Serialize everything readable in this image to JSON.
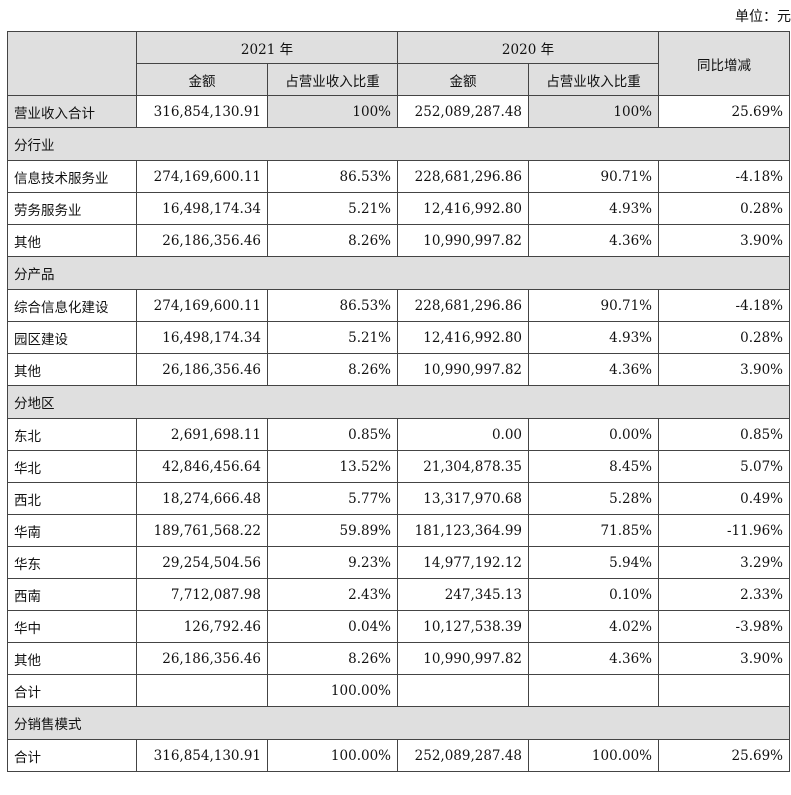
{
  "unit_label": "单位：元",
  "header": {
    "year_2021": "2021 年",
    "year_2020": "2020 年",
    "amount": "金额",
    "ratio": "占营业收入比重",
    "yoy": "同比增减"
  },
  "total_row": {
    "label": "营业收入合计",
    "amt_2021": "316,854,130.91",
    "ratio_2021": "100%",
    "amt_2020": "252,089,287.48",
    "ratio_2020": "100%",
    "yoy": "25.69%"
  },
  "sections": {
    "industry": {
      "title": "分行业",
      "rows": [
        {
          "label": "信息技术服务业",
          "amt_2021": "274,169,600.11",
          "ratio_2021": "86.53%",
          "amt_2020": "228,681,296.86",
          "ratio_2020": "90.71%",
          "yoy": "-4.18%"
        },
        {
          "label": "劳务服务业",
          "amt_2021": "16,498,174.34",
          "ratio_2021": "5.21%",
          "amt_2020": "12,416,992.80",
          "ratio_2020": "4.93%",
          "yoy": "0.28%"
        },
        {
          "label": "其他",
          "amt_2021": "26,186,356.46",
          "ratio_2021": "8.26%",
          "amt_2020": "10,990,997.82",
          "ratio_2020": "4.36%",
          "yoy": "3.90%"
        }
      ]
    },
    "product": {
      "title": "分产品",
      "rows": [
        {
          "label": "综合信息化建设",
          "amt_2021": "274,169,600.11",
          "ratio_2021": "86.53%",
          "amt_2020": "228,681,296.86",
          "ratio_2020": "90.71%",
          "yoy": "-4.18%"
        },
        {
          "label": "园区建设",
          "amt_2021": "16,498,174.34",
          "ratio_2021": "5.21%",
          "amt_2020": "12,416,992.80",
          "ratio_2020": "4.93%",
          "yoy": "0.28%"
        },
        {
          "label": "其他",
          "amt_2021": "26,186,356.46",
          "ratio_2021": "8.26%",
          "amt_2020": "10,990,997.82",
          "ratio_2020": "4.36%",
          "yoy": "3.90%"
        }
      ]
    },
    "region": {
      "title": "分地区",
      "rows": [
        {
          "label": "东北",
          "amt_2021": "2,691,698.11",
          "ratio_2021": "0.85%",
          "amt_2020": "0.00",
          "ratio_2020": "0.00%",
          "yoy": "0.85%"
        },
        {
          "label": "华北",
          "amt_2021": "42,846,456.64",
          "ratio_2021": "13.52%",
          "amt_2020": "21,304,878.35",
          "ratio_2020": "8.45%",
          "yoy": "5.07%"
        },
        {
          "label": "西北",
          "amt_2021": "18,274,666.48",
          "ratio_2021": "5.77%",
          "amt_2020": "13,317,970.68",
          "ratio_2020": "5.28%",
          "yoy": "0.49%"
        },
        {
          "label": "华南",
          "amt_2021": "189,761,568.22",
          "ratio_2021": "59.89%",
          "amt_2020": "181,123,364.99",
          "ratio_2020": "71.85%",
          "yoy": "-11.96%"
        },
        {
          "label": "华东",
          "amt_2021": "29,254,504.56",
          "ratio_2021": "9.23%",
          "amt_2020": "14,977,192.12",
          "ratio_2020": "5.94%",
          "yoy": "3.29%"
        },
        {
          "label": "西南",
          "amt_2021": "7,712,087.98",
          "ratio_2021": "2.43%",
          "amt_2020": "247,345.13",
          "ratio_2020": "0.10%",
          "yoy": "2.33%"
        },
        {
          "label": "华中",
          "amt_2021": "126,792.46",
          "ratio_2021": "0.04%",
          "amt_2020": "10,127,538.39",
          "ratio_2020": "4.02%",
          "yoy": "-3.98%"
        },
        {
          "label": "其他",
          "amt_2021": "26,186,356.46",
          "ratio_2021": "8.26%",
          "amt_2020": "10,990,997.82",
          "ratio_2020": "4.36%",
          "yoy": "3.90%"
        },
        {
          "label": "合计",
          "amt_2021": "",
          "ratio_2021": "100.00%",
          "amt_2020": "",
          "ratio_2020": "",
          "yoy": ""
        }
      ]
    },
    "sales_mode": {
      "title": "分销售模式",
      "rows": [
        {
          "label": "合计",
          "amt_2021": "316,854,130.91",
          "ratio_2021": "100.00%",
          "amt_2020": "252,089,287.48",
          "ratio_2020": "100.00%",
          "yoy": "25.69%"
        }
      ]
    }
  }
}
